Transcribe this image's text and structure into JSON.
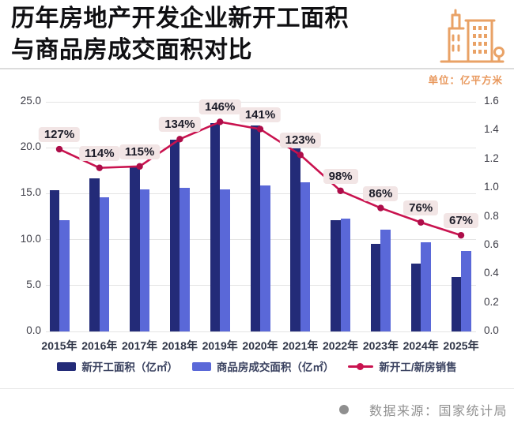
{
  "header": {
    "title_line1": "历年房地产开发企业新开工面积",
    "title_line2": "与商品房成交面积对比",
    "unit_label": "单位：亿平方米",
    "icon_color": "#e9a266"
  },
  "chart_data": {
    "type": "bar",
    "subtype": "grouped-bars-with-line",
    "categories": [
      "2015年",
      "2016年",
      "2017年",
      "2018年",
      "2019年",
      "2020年",
      "2021年",
      "2022年",
      "2023年",
      "2024年",
      "2025年"
    ],
    "series": [
      {
        "name": "新开工面积（亿㎡）",
        "type": "bar",
        "color": "#232b78",
        "values": [
          15.4,
          16.7,
          17.9,
          20.9,
          22.7,
          22.4,
          19.9,
          12.1,
          9.5,
          7.4,
          5.9
        ]
      },
      {
        "name": "商品房成交面积（亿㎡）",
        "type": "bar",
        "color": "#5a68d8",
        "values": [
          12.1,
          14.6,
          15.5,
          15.6,
          15.5,
          15.9,
          16.2,
          12.3,
          11.1,
          9.7,
          8.8
        ]
      },
      {
        "name": "新开工/新房销售",
        "type": "line",
        "axis": "right",
        "color": "#c9134f",
        "point_color": "#ad0d49",
        "labels": [
          "127%",
          "114%",
          "115%",
          "134%",
          "146%",
          "141%",
          "123%",
          "98%",
          "86%",
          "76%",
          "67%"
        ],
        "values": [
          1.27,
          1.14,
          1.15,
          1.34,
          1.46,
          1.41,
          1.23,
          0.98,
          0.86,
          0.76,
          0.67
        ]
      }
    ],
    "left_axis": {
      "min": 0,
      "max": 25,
      "ticks": [
        "25.0",
        "20.0",
        "15.0",
        "10.0",
        "5.0",
        "0.0"
      ]
    },
    "right_axis": {
      "min": 0,
      "max": 1.6,
      "ticks": [
        "1.6",
        "1.4",
        "1.2",
        "1.0",
        "0.8",
        "0.6",
        "0.4",
        "0.2",
        "0.0"
      ]
    },
    "grid": true,
    "legend_position": "bottom",
    "badge_bg": "#f2e5e5"
  },
  "footer": {
    "source_text": "数据来源：国家统计局"
  }
}
